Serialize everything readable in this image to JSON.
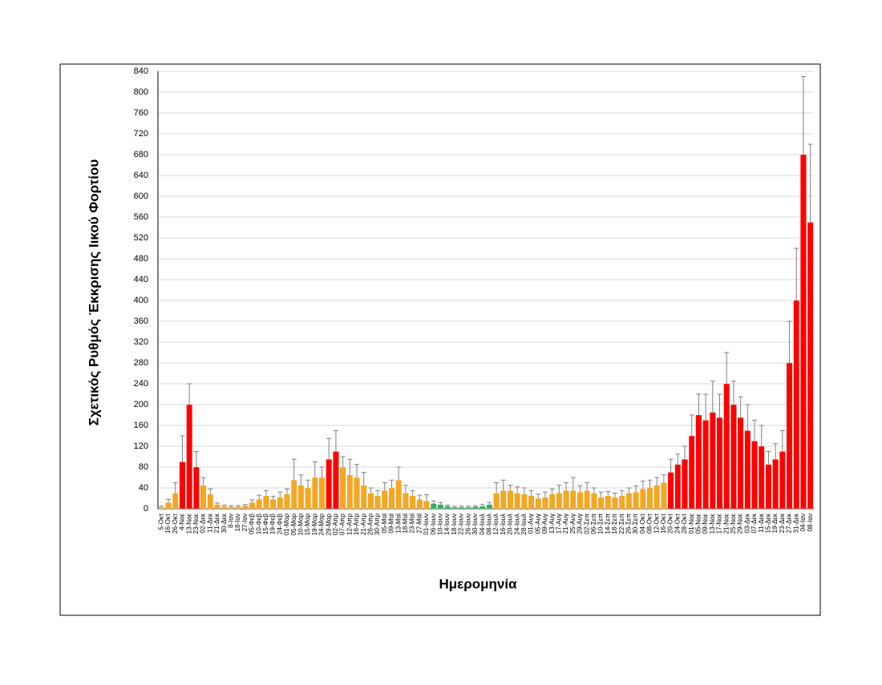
{
  "chart_data": {
    "type": "bar",
    "ylabel": "Σχετικός Ρυθμός Έκκρισης Ιικού Φορτίου",
    "xlabel": "Ημερομηνία",
    "categories": [
      "5-Οκτ",
      "16-Οκτ",
      "26-Οκτ",
      "4-Νοε",
      "13-Νοε",
      "23-Νοε",
      "02-Δεκ",
      "11-Δεκ",
      "21-Δεκ",
      "30-Δεκ",
      "8-Ιαν",
      "18-Ιαν",
      "27-Ιαν",
      "05-Φεβ",
      "10-Φεβ",
      "15-Φεβ",
      "19-Φεβ",
      "24-Φεβ",
      "01-Μαρ",
      "05-Μαρ",
      "10-Μαρ",
      "15-Μαρ",
      "19-Μαρ",
      "24-Μαρ",
      "29-Μαρ",
      "02-Απρ",
      "07-Απρ",
      "12-Απρ",
      "16-Απρ",
      "21-Απρ",
      "26-Απρ",
      "30-Απρ",
      "05-Μαϊ",
      "09-Μαϊ",
      "13-Μαϊ",
      "18-Μαϊ",
      "23-Μαϊ",
      "27-Μαϊ",
      "01-Ιουν",
      "06-Ιουν",
      "10-Ιουν",
      "14-Ιουν",
      "18-Ιουν",
      "22-Ιουν",
      "26-Ιουν",
      "30-Ιουν",
      "04-Ιουλ",
      "08-Ιουλ",
      "12-Ιουλ",
      "16-Ιουλ",
      "20-Ιουλ",
      "24-Ιουλ",
      "28-Ιουλ",
      "01-Αυγ",
      "05-Αυγ",
      "09-Αυγ",
      "13-Αυγ",
      "17-Αυγ",
      "21-Αυγ",
      "25-Αυγ",
      "29-Αυγ",
      "02-Σεπ",
      "06-Σεπ",
      "10-Σεπ",
      "14-Σεπ",
      "18-Σεπ",
      "22-Σεπ",
      "26-Σεπ",
      "30-Σεπ",
      "04-Οκτ",
      "08-Οκτ",
      "12-Οκτ",
      "16-Οκτ",
      "20-Οκτ",
      "24-Οκτ",
      "28-Οκτ",
      "01-Νοε",
      "05-Νοε",
      "09-Νοε",
      "13-Νοε",
      "17-Νοε",
      "21-Νοε",
      "25-Νοε",
      "29-Νοε",
      "03-Δεκ",
      "07-Δεκ",
      "11-Δεκ",
      "15-Δεκ",
      "19-Δεκ",
      "23-Δεκ",
      "27-Δεκ",
      "31-Δεκ",
      "04-Ιαν",
      "08-Ιαν"
    ],
    "values": [
      3,
      12,
      30,
      90,
      200,
      80,
      45,
      28,
      8,
      5,
      4,
      4,
      6,
      12,
      18,
      25,
      18,
      22,
      28,
      55,
      45,
      40,
      60,
      60,
      95,
      110,
      80,
      65,
      60,
      45,
      30,
      25,
      35,
      40,
      55,
      30,
      25,
      18,
      15,
      10,
      8,
      5,
      3,
      3,
      3,
      4,
      5,
      8,
      30,
      35,
      35,
      30,
      28,
      25,
      20,
      22,
      28,
      30,
      35,
      35,
      32,
      35,
      30,
      22,
      25,
      22,
      25,
      30,
      32,
      38,
      40,
      45,
      50,
      70,
      85,
      95,
      140,
      180,
      170,
      185,
      175,
      240,
      200,
      175,
      150,
      130,
      120,
      85,
      95,
      110,
      280,
      400,
      680,
      550
    ],
    "errors": [
      2,
      6,
      20,
      50,
      40,
      30,
      15,
      10,
      3,
      2,
      2,
      2,
      2,
      5,
      8,
      10,
      6,
      10,
      10,
      40,
      20,
      15,
      30,
      20,
      40,
      40,
      20,
      30,
      25,
      25,
      10,
      10,
      15,
      15,
      25,
      15,
      10,
      8,
      12,
      5,
      4,
      2,
      2,
      2,
      2,
      2,
      3,
      4,
      20,
      20,
      10,
      12,
      12,
      10,
      8,
      10,
      10,
      15,
      15,
      25,
      12,
      15,
      10,
      10,
      8,
      8,
      10,
      10,
      12,
      15,
      15,
      15,
      15,
      25,
      20,
      25,
      40,
      40,
      50,
      60,
      45,
      60,
      45,
      40,
      50,
      40,
      40,
      25,
      30,
      40,
      80,
      100,
      150,
      150
    ],
    "colors": [
      "#f5a623",
      "#f5a623",
      "#f5a623",
      "#ff0000",
      "#ff0000",
      "#ff0000",
      "#f5a623",
      "#f5a623",
      "#f5a623",
      "#f5a623",
      "#f5a623",
      "#f5a623",
      "#f5a623",
      "#f5a623",
      "#f5a623",
      "#f5a623",
      "#f5a623",
      "#f5a623",
      "#f5a623",
      "#f5a623",
      "#f5a623",
      "#f5a623",
      "#f5a623",
      "#f5a623",
      "#ff0000",
      "#ff0000",
      "#f5a623",
      "#f5a623",
      "#f5a623",
      "#f5a623",
      "#f5a623",
      "#f5a623",
      "#f5a623",
      "#f5a623",
      "#f5a623",
      "#f5a623",
      "#f5a623",
      "#f5a623",
      "#f5a623",
      "#2db35a",
      "#2db35a",
      "#2db35a",
      "#2db35a",
      "#2db35a",
      "#2db35a",
      "#2db35a",
      "#2db35a",
      "#2db35a",
      "#f5a623",
      "#f5a623",
      "#f5a623",
      "#f5a623",
      "#f5a623",
      "#f5a623",
      "#f5a623",
      "#f5a623",
      "#f5a623",
      "#f5a623",
      "#f5a623",
      "#f5a623",
      "#f5a623",
      "#f5a623",
      "#f5a623",
      "#f5a623",
      "#f5a623",
      "#f5a623",
      "#f5a623",
      "#f5a623",
      "#f5a623",
      "#f5a623",
      "#f5a623",
      "#f5a623",
      "#f5a623",
      "#ff0000",
      "#ff0000",
      "#ff0000",
      "#ff0000",
      "#ff0000",
      "#ff0000",
      "#ff0000",
      "#ff0000",
      "#ff0000",
      "#ff0000",
      "#ff0000",
      "#ff0000",
      "#ff0000",
      "#ff0000",
      "#ff0000",
      "#ff0000",
      "#ff0000",
      "#ff0000",
      "#ff0000",
      "#ff0000",
      "#ff0000"
    ],
    "error_color": "#808080",
    "ylim": [
      0,
      840
    ],
    "yticks": [
      0,
      40,
      80,
      120,
      160,
      200,
      240,
      280,
      320,
      360,
      400,
      440,
      480,
      520,
      560,
      600,
      640,
      680,
      720,
      760,
      800,
      840
    ],
    "grid": true
  }
}
